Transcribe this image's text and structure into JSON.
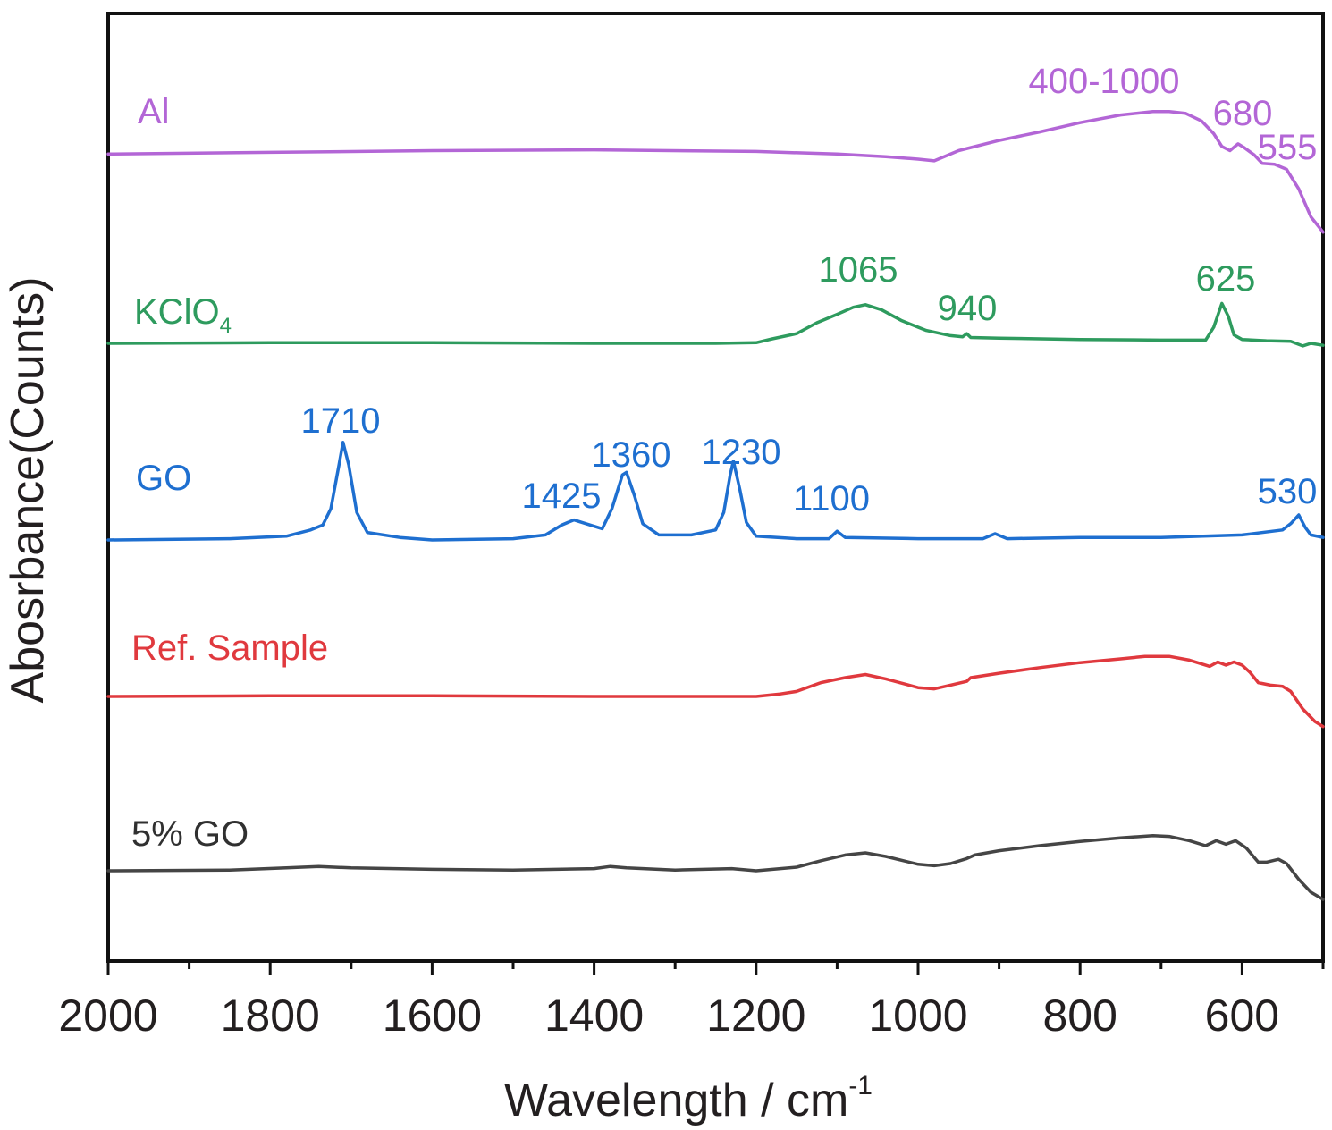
{
  "chart_data": {
    "type": "line",
    "xlabel": "Wavelength / cm",
    "xlabel_sup": "-1",
    "ylabel": "Abosrbance(Counts)",
    "xlim": [
      2000,
      500
    ],
    "x_reversed": true,
    "y_tick_labels": false,
    "stacked_offsets": true,
    "x_ticks": [
      2000,
      1800,
      1600,
      1400,
      1200,
      1000,
      800,
      600
    ],
    "x_minor_ticks": [
      1900,
      1700,
      1500,
      1300,
      1100,
      900,
      700,
      500
    ],
    "series": [
      {
        "key": "al",
        "name": "Al",
        "color": "#b366d6",
        "peaks": [
          "400-1000",
          "680",
          "555"
        ],
        "points": [
          [
            2000,
            0.06
          ],
          [
            1800,
            0.08
          ],
          [
            1600,
            0.1
          ],
          [
            1400,
            0.11
          ],
          [
            1200,
            0.09
          ],
          [
            1100,
            0.06
          ],
          [
            1040,
            0.03
          ],
          [
            1000,
            0.0
          ],
          [
            980,
            -0.02
          ],
          [
            950,
            0.1
          ],
          [
            900,
            0.22
          ],
          [
            850,
            0.32
          ],
          [
            800,
            0.43
          ],
          [
            750,
            0.52
          ],
          [
            710,
            0.56
          ],
          [
            690,
            0.56
          ],
          [
            670,
            0.54
          ],
          [
            650,
            0.45
          ],
          [
            635,
            0.3
          ],
          [
            625,
            0.15
          ],
          [
            615,
            0.1
          ],
          [
            605,
            0.18
          ],
          [
            598,
            0.14
          ],
          [
            585,
            0.05
          ],
          [
            575,
            -0.05
          ],
          [
            560,
            -0.06
          ],
          [
            545,
            -0.12
          ],
          [
            530,
            -0.35
          ],
          [
            515,
            -0.68
          ],
          [
            500,
            -0.86
          ]
        ]
      },
      {
        "key": "kclo4",
        "name": "KClO",
        "name_sub": "4",
        "color": "#2e9b5e",
        "peaks": [
          "1065",
          "940",
          "625"
        ],
        "points": [
          [
            2000,
            0.0
          ],
          [
            1800,
            0.01
          ],
          [
            1600,
            0.01
          ],
          [
            1400,
            0.0
          ],
          [
            1250,
            0.0
          ],
          [
            1200,
            0.01
          ],
          [
            1180,
            0.07
          ],
          [
            1150,
            0.15
          ],
          [
            1125,
            0.32
          ],
          [
            1100,
            0.45
          ],
          [
            1080,
            0.56
          ],
          [
            1065,
            0.6
          ],
          [
            1045,
            0.52
          ],
          [
            1020,
            0.35
          ],
          [
            990,
            0.2
          ],
          [
            960,
            0.12
          ],
          [
            945,
            0.1
          ],
          [
            940,
            0.15
          ],
          [
            935,
            0.09
          ],
          [
            900,
            0.08
          ],
          [
            800,
            0.06
          ],
          [
            700,
            0.05
          ],
          [
            645,
            0.05
          ],
          [
            635,
            0.25
          ],
          [
            625,
            0.62
          ],
          [
            617,
            0.42
          ],
          [
            610,
            0.13
          ],
          [
            600,
            0.06
          ],
          [
            570,
            0.04
          ],
          [
            540,
            0.03
          ],
          [
            525,
            -0.04
          ],
          [
            515,
            0.0
          ],
          [
            500,
            -0.03
          ]
        ]
      },
      {
        "key": "go",
        "name": "GO",
        "color": "#1e6fd0",
        "peaks": [
          "1710",
          "1425",
          "1360",
          "1230",
          "1100",
          "530"
        ],
        "points": [
          [
            2000,
            0.0
          ],
          [
            1850,
            0.01
          ],
          [
            1780,
            0.03
          ],
          [
            1750,
            0.08
          ],
          [
            1735,
            0.12
          ],
          [
            1725,
            0.25
          ],
          [
            1715,
            0.6
          ],
          [
            1710,
            0.78
          ],
          [
            1703,
            0.6
          ],
          [
            1693,
            0.22
          ],
          [
            1680,
            0.06
          ],
          [
            1640,
            0.02
          ],
          [
            1600,
            0.0
          ],
          [
            1500,
            0.01
          ],
          [
            1460,
            0.04
          ],
          [
            1440,
            0.12
          ],
          [
            1425,
            0.16
          ],
          [
            1410,
            0.13
          ],
          [
            1390,
            0.09
          ],
          [
            1378,
            0.25
          ],
          [
            1365,
            0.52
          ],
          [
            1360,
            0.54
          ],
          [
            1350,
            0.35
          ],
          [
            1340,
            0.13
          ],
          [
            1320,
            0.04
          ],
          [
            1280,
            0.04
          ],
          [
            1250,
            0.08
          ],
          [
            1240,
            0.22
          ],
          [
            1232,
            0.52
          ],
          [
            1228,
            0.63
          ],
          [
            1220,
            0.4
          ],
          [
            1212,
            0.14
          ],
          [
            1200,
            0.03
          ],
          [
            1150,
            0.01
          ],
          [
            1110,
            0.01
          ],
          [
            1100,
            0.07
          ],
          [
            1090,
            0.02
          ],
          [
            1000,
            0.01
          ],
          [
            920,
            0.01
          ],
          [
            905,
            0.05
          ],
          [
            890,
            0.01
          ],
          [
            800,
            0.02
          ],
          [
            700,
            0.02
          ],
          [
            600,
            0.04
          ],
          [
            550,
            0.08
          ],
          [
            540,
            0.13
          ],
          [
            530,
            0.2
          ],
          [
            522,
            0.1
          ],
          [
            515,
            0.04
          ],
          [
            500,
            0.02
          ]
        ]
      },
      {
        "key": "ref",
        "name": "Ref. Sample",
        "color": "#e0393e",
        "peaks": [],
        "points": [
          [
            2000,
            0.0
          ],
          [
            1800,
            0.01
          ],
          [
            1600,
            0.01
          ],
          [
            1400,
            0.0
          ],
          [
            1200,
            0.0
          ],
          [
            1170,
            0.04
          ],
          [
            1150,
            0.08
          ],
          [
            1120,
            0.22
          ],
          [
            1090,
            0.3
          ],
          [
            1065,
            0.35
          ],
          [
            1040,
            0.28
          ],
          [
            1000,
            0.14
          ],
          [
            980,
            0.12
          ],
          [
            960,
            0.18
          ],
          [
            940,
            0.24
          ],
          [
            935,
            0.3
          ],
          [
            900,
            0.37
          ],
          [
            850,
            0.46
          ],
          [
            800,
            0.54
          ],
          [
            750,
            0.6
          ],
          [
            720,
            0.64
          ],
          [
            690,
            0.64
          ],
          [
            665,
            0.58
          ],
          [
            640,
            0.48
          ],
          [
            630,
            0.55
          ],
          [
            620,
            0.5
          ],
          [
            610,
            0.55
          ],
          [
            600,
            0.5
          ],
          [
            590,
            0.38
          ],
          [
            580,
            0.22
          ],
          [
            565,
            0.18
          ],
          [
            550,
            0.16
          ],
          [
            540,
            0.08
          ],
          [
            525,
            -0.2
          ],
          [
            510,
            -0.4
          ],
          [
            500,
            -0.48
          ]
        ]
      },
      {
        "key": "go5",
        "name": "5% GO",
        "color": "#454545",
        "peaks": [],
        "points": [
          [
            2000,
            0.0
          ],
          [
            1850,
            0.01
          ],
          [
            1780,
            0.04
          ],
          [
            1740,
            0.06
          ],
          [
            1700,
            0.04
          ],
          [
            1600,
            0.02
          ],
          [
            1500,
            0.01
          ],
          [
            1400,
            0.03
          ],
          [
            1380,
            0.06
          ],
          [
            1360,
            0.04
          ],
          [
            1300,
            0.01
          ],
          [
            1230,
            0.03
          ],
          [
            1200,
            0.0
          ],
          [
            1150,
            0.05
          ],
          [
            1120,
            0.14
          ],
          [
            1090,
            0.22
          ],
          [
            1065,
            0.25
          ],
          [
            1040,
            0.2
          ],
          [
            1000,
            0.09
          ],
          [
            980,
            0.07
          ],
          [
            960,
            0.1
          ],
          [
            940,
            0.17
          ],
          [
            930,
            0.22
          ],
          [
            900,
            0.28
          ],
          [
            850,
            0.35
          ],
          [
            800,
            0.41
          ],
          [
            750,
            0.46
          ],
          [
            710,
            0.49
          ],
          [
            690,
            0.48
          ],
          [
            665,
            0.42
          ],
          [
            645,
            0.35
          ],
          [
            632,
            0.42
          ],
          [
            620,
            0.37
          ],
          [
            608,
            0.42
          ],
          [
            595,
            0.32
          ],
          [
            580,
            0.12
          ],
          [
            570,
            0.12
          ],
          [
            555,
            0.16
          ],
          [
            545,
            0.1
          ],
          [
            530,
            -0.12
          ],
          [
            515,
            -0.3
          ],
          [
            500,
            -0.4
          ]
        ]
      }
    ]
  }
}
